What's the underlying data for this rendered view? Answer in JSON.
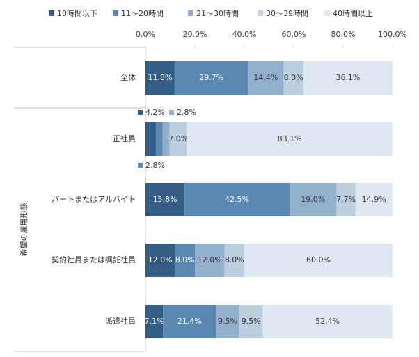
{
  "chart_data": {
    "type": "stacked-bar-horizontal",
    "axis_title": "希望の雇用形態",
    "categories": [
      "全体",
      "正社員",
      "パートまたはアルバイト",
      "契約社員または嘱託社員",
      "派遣社員"
    ],
    "series": [
      {
        "name": "10時間以下",
        "color": "#355c82",
        "values": [
          11.8,
          4.2,
          15.8,
          12.0,
          7.1
        ],
        "value_labels": [
          "11.8%",
          "4.2%",
          "15.8%",
          "12.0%",
          "7.1%"
        ]
      },
      {
        "name": "11～20時間",
        "color": "#5b88b3",
        "values": [
          29.7,
          2.8,
          42.5,
          8.0,
          21.4
        ],
        "value_labels": [
          "29.7%",
          "2.8%",
          "42.5%",
          "8.0%",
          "21.4%"
        ]
      },
      {
        "name": "21～30時間",
        "color": "#92b0cc",
        "values": [
          14.4,
          2.8,
          19.0,
          12.0,
          9.5
        ],
        "value_labels": [
          "14.4%",
          "2.8%",
          "19.0%",
          "12.0%",
          "9.5%"
        ]
      },
      {
        "name": "30～39時間",
        "color": "#bccfe1",
        "values": [
          8.0,
          7.0,
          7.7,
          8.0,
          9.5
        ],
        "value_labels": [
          "8.0%",
          "7.0%",
          "7.7%",
          "8.0%",
          "9.5%"
        ]
      },
      {
        "name": "40時間以上",
        "color": "#dfe8f1",
        "values": [
          36.1,
          83.1,
          14.9,
          60.0,
          52.4
        ],
        "value_labels": [
          "36.1%",
          "83.1%",
          "14.9%",
          "60.0%",
          "52.4%"
        ]
      }
    ],
    "xlim": [
      0,
      100
    ],
    "xticks": [
      {
        "value": 0,
        "label": "0.0%"
      },
      {
        "value": 20,
        "label": "20.0%"
      },
      {
        "value": 40,
        "label": "40.0%"
      },
      {
        "value": 60,
        "label": "60.0%"
      },
      {
        "value": 80,
        "label": "80.0%"
      },
      {
        "value": 100,
        "label": "100.0%"
      }
    ]
  }
}
